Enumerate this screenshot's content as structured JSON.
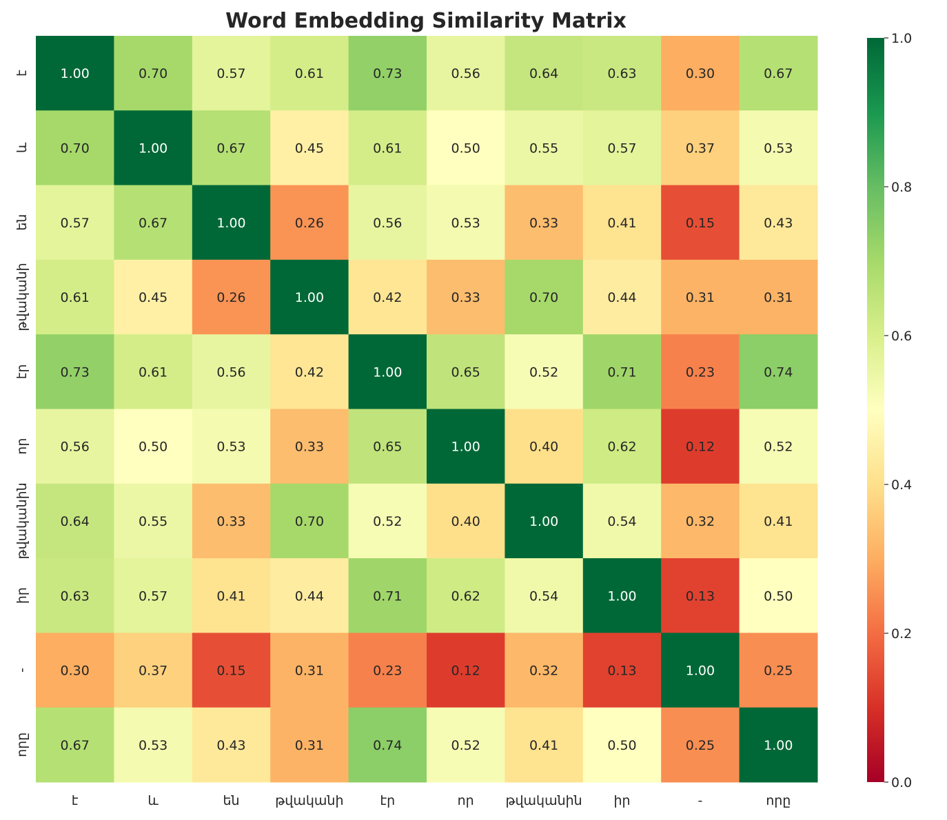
{
  "chart_data": {
    "type": "heatmap",
    "title": "Word Embedding Similarity Matrix",
    "labels": [
      "է",
      "և",
      "են",
      "թվականի",
      "էր",
      "որ",
      "թվականին",
      "իր",
      "-",
      "որը"
    ],
    "values": [
      [
        1.0,
        0.7,
        0.57,
        0.61,
        0.73,
        0.56,
        0.64,
        0.63,
        0.3,
        0.67
      ],
      [
        0.7,
        1.0,
        0.67,
        0.45,
        0.61,
        0.5,
        0.55,
        0.57,
        0.37,
        0.53
      ],
      [
        0.57,
        0.67,
        1.0,
        0.26,
        0.56,
        0.53,
        0.33,
        0.41,
        0.15,
        0.43
      ],
      [
        0.61,
        0.45,
        0.26,
        1.0,
        0.42,
        0.33,
        0.7,
        0.44,
        0.31,
        0.31
      ],
      [
        0.73,
        0.61,
        0.56,
        0.42,
        1.0,
        0.65,
        0.52,
        0.71,
        0.23,
        0.74
      ],
      [
        0.56,
        0.5,
        0.53,
        0.33,
        0.65,
        1.0,
        0.4,
        0.62,
        0.12,
        0.52
      ],
      [
        0.64,
        0.55,
        0.33,
        0.7,
        0.52,
        0.4,
        1.0,
        0.54,
        0.32,
        0.41
      ],
      [
        0.63,
        0.57,
        0.41,
        0.44,
        0.71,
        0.62,
        0.54,
        1.0,
        0.13,
        0.5
      ],
      [
        0.3,
        0.37,
        0.15,
        0.31,
        0.23,
        0.12,
        0.32,
        0.13,
        1.0,
        0.25
      ],
      [
        0.67,
        0.53,
        0.43,
        0.31,
        0.74,
        0.52,
        0.41,
        0.5,
        0.25,
        1.0
      ]
    ],
    "colormap": "RdYlGn",
    "vmin": 0.0,
    "vmax": 1.0,
    "colorbar_ticks": [
      "0.0",
      "0.2",
      "0.4",
      "0.6",
      "0.8",
      "1.0"
    ],
    "annotation_format": "0.00"
  }
}
